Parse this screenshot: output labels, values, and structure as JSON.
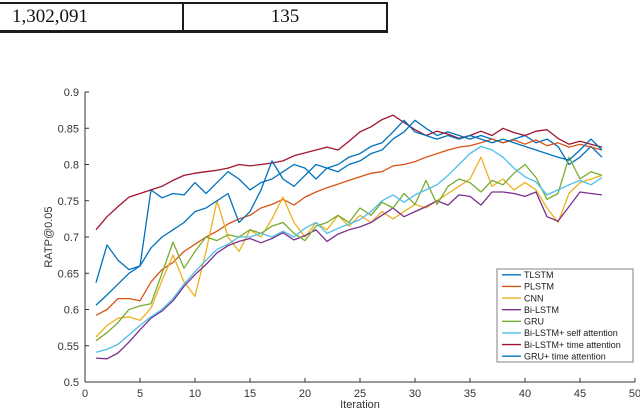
{
  "table": {
    "rows": [
      [
        "1,302,091",
        "135"
      ]
    ]
  },
  "chart_data": {
    "type": "line",
    "title": "",
    "xlabel": "Iteration",
    "ylabel": "RATP@0.05",
    "xlim": [
      0,
      50
    ],
    "ylim": [
      0.5,
      0.9
    ],
    "x_ticks": [
      0,
      5,
      10,
      15,
      20,
      25,
      30,
      35,
      40,
      45,
      50
    ],
    "y_ticks": [
      "0.5",
      "0.55",
      "0.6",
      "0.65",
      "0.7",
      "0.75",
      "0.8",
      "0.85",
      "0.9"
    ],
    "grid": false,
    "legend_position": "southeast",
    "axis_color": "#333333",
    "legend_border_color": "#808080",
    "x": [
      1,
      2,
      3,
      4,
      5,
      6,
      7,
      8,
      9,
      10,
      11,
      12,
      13,
      14,
      15,
      16,
      17,
      18,
      19,
      20,
      21,
      22,
      23,
      24,
      25,
      26,
      27,
      28,
      29,
      30,
      31,
      32,
      33,
      34,
      35,
      36,
      37,
      38,
      39,
      40,
      41,
      42,
      43,
      44,
      45,
      46,
      47
    ],
    "series": [
      {
        "name": "TLSTM",
        "color": "#0072BD",
        "values": [
          0.637,
          0.689,
          0.668,
          0.655,
          0.66,
          0.765,
          0.754,
          0.76,
          0.758,
          0.775,
          0.76,
          0.775,
          0.79,
          0.78,
          0.765,
          0.775,
          0.78,
          0.79,
          0.8,
          0.795,
          0.78,
          0.795,
          0.79,
          0.8,
          0.805,
          0.815,
          0.82,
          0.835,
          0.845,
          0.861,
          0.85,
          0.84,
          0.845,
          0.84,
          0.835,
          0.84,
          0.835,
          0.83,
          0.835,
          0.84,
          0.83,
          0.835,
          0.825,
          0.8,
          0.81,
          0.825,
          0.81
        ]
      },
      {
        "name": "PLSTM",
        "color": "#D95319",
        "values": [
          0.592,
          0.6,
          0.615,
          0.615,
          0.612,
          0.638,
          0.655,
          0.665,
          0.68,
          0.69,
          0.7,
          0.708,
          0.718,
          0.725,
          0.73,
          0.74,
          0.745,
          0.752,
          0.744,
          0.755,
          0.762,
          0.768,
          0.773,
          0.778,
          0.783,
          0.788,
          0.79,
          0.798,
          0.8,
          0.804,
          0.81,
          0.815,
          0.82,
          0.824,
          0.826,
          0.83,
          0.835,
          0.83,
          0.834,
          0.828,
          0.834,
          0.826,
          0.83,
          0.824,
          0.828,
          0.824,
          0.82
        ]
      },
      {
        "name": "CNN",
        "color": "#EDB120",
        "values": [
          0.562,
          0.578,
          0.588,
          0.59,
          0.585,
          0.602,
          0.64,
          0.675,
          0.638,
          0.618,
          0.68,
          0.75,
          0.7,
          0.68,
          0.71,
          0.7,
          0.725,
          0.755,
          0.72,
          0.7,
          0.72,
          0.71,
          0.73,
          0.715,
          0.73,
          0.72,
          0.735,
          0.725,
          0.735,
          0.745,
          0.74,
          0.75,
          0.76,
          0.77,
          0.78,
          0.81,
          0.77,
          0.78,
          0.765,
          0.775,
          0.765,
          0.74,
          0.72,
          0.76,
          0.775,
          0.78,
          0.785
        ]
      },
      {
        "name": "Bi-LSTM",
        "color": "#7E2F8E",
        "values": [
          0.533,
          0.532,
          0.54,
          0.555,
          0.572,
          0.588,
          0.598,
          0.612,
          0.632,
          0.648,
          0.662,
          0.678,
          0.688,
          0.694,
          0.698,
          0.692,
          0.698,
          0.706,
          0.696,
          0.702,
          0.71,
          0.694,
          0.704,
          0.71,
          0.714,
          0.72,
          0.73,
          0.74,
          0.728,
          0.735,
          0.742,
          0.75,
          0.744,
          0.758,
          0.756,
          0.744,
          0.762,
          0.762,
          0.76,
          0.756,
          0.762,
          0.728,
          0.722,
          0.742,
          0.762,
          0.76,
          0.758
        ]
      },
      {
        "name": "GRU",
        "color": "#77AC30",
        "values": [
          0.557,
          0.568,
          0.582,
          0.6,
          0.605,
          0.608,
          0.65,
          0.693,
          0.657,
          0.68,
          0.7,
          0.695,
          0.703,
          0.7,
          0.71,
          0.705,
          0.715,
          0.72,
          0.705,
          0.695,
          0.715,
          0.72,
          0.73,
          0.72,
          0.74,
          0.73,
          0.748,
          0.74,
          0.76,
          0.745,
          0.778,
          0.745,
          0.77,
          0.78,
          0.775,
          0.762,
          0.778,
          0.772,
          0.788,
          0.8,
          0.782,
          0.752,
          0.76,
          0.81,
          0.78,
          0.79,
          0.785
        ]
      },
      {
        "name": "Bi-LSTM+ self attention",
        "color": "#4DBEEE",
        "values": [
          0.541,
          0.545,
          0.552,
          0.565,
          0.578,
          0.59,
          0.6,
          0.615,
          0.635,
          0.652,
          0.668,
          0.683,
          0.69,
          0.7,
          0.7,
          0.705,
          0.7,
          0.708,
          0.7,
          0.712,
          0.72,
          0.705,
          0.712,
          0.718,
          0.724,
          0.735,
          0.75,
          0.758,
          0.748,
          0.758,
          0.765,
          0.772,
          0.785,
          0.8,
          0.815,
          0.825,
          0.82,
          0.81,
          0.795,
          0.783,
          0.776,
          0.758,
          0.765,
          0.772,
          0.778,
          0.772,
          0.782
        ]
      },
      {
        "name": "Bi-LSTM+ time attention",
        "color": "#A2142F",
        "values": [
          0.71,
          0.728,
          0.742,
          0.755,
          0.76,
          0.765,
          0.77,
          0.778,
          0.785,
          0.788,
          0.79,
          0.792,
          0.795,
          0.8,
          0.798,
          0.8,
          0.802,
          0.805,
          0.812,
          0.816,
          0.82,
          0.824,
          0.82,
          0.832,
          0.845,
          0.852,
          0.862,
          0.868,
          0.858,
          0.848,
          0.84,
          0.846,
          0.842,
          0.836,
          0.84,
          0.846,
          0.84,
          0.85,
          0.844,
          0.84,
          0.846,
          0.848,
          0.836,
          0.828,
          0.832,
          0.828,
          0.824
        ]
      },
      {
        "name": "GRU+ time attention",
        "color": "#0072BD",
        "values": [
          0.606,
          0.62,
          0.635,
          0.65,
          0.66,
          0.685,
          0.7,
          0.71,
          0.72,
          0.735,
          0.74,
          0.75,
          0.76,
          0.72,
          0.735,
          0.765,
          0.805,
          0.78,
          0.77,
          0.785,
          0.8,
          0.795,
          0.8,
          0.81,
          0.815,
          0.825,
          0.83,
          0.845,
          0.861,
          0.845,
          0.84,
          0.835,
          0.84,
          0.835,
          0.84,
          0.835,
          0.83,
          0.835,
          0.83,
          0.825,
          0.82,
          0.815,
          0.81,
          0.806,
          0.82,
          0.835,
          0.82
        ]
      }
    ]
  }
}
